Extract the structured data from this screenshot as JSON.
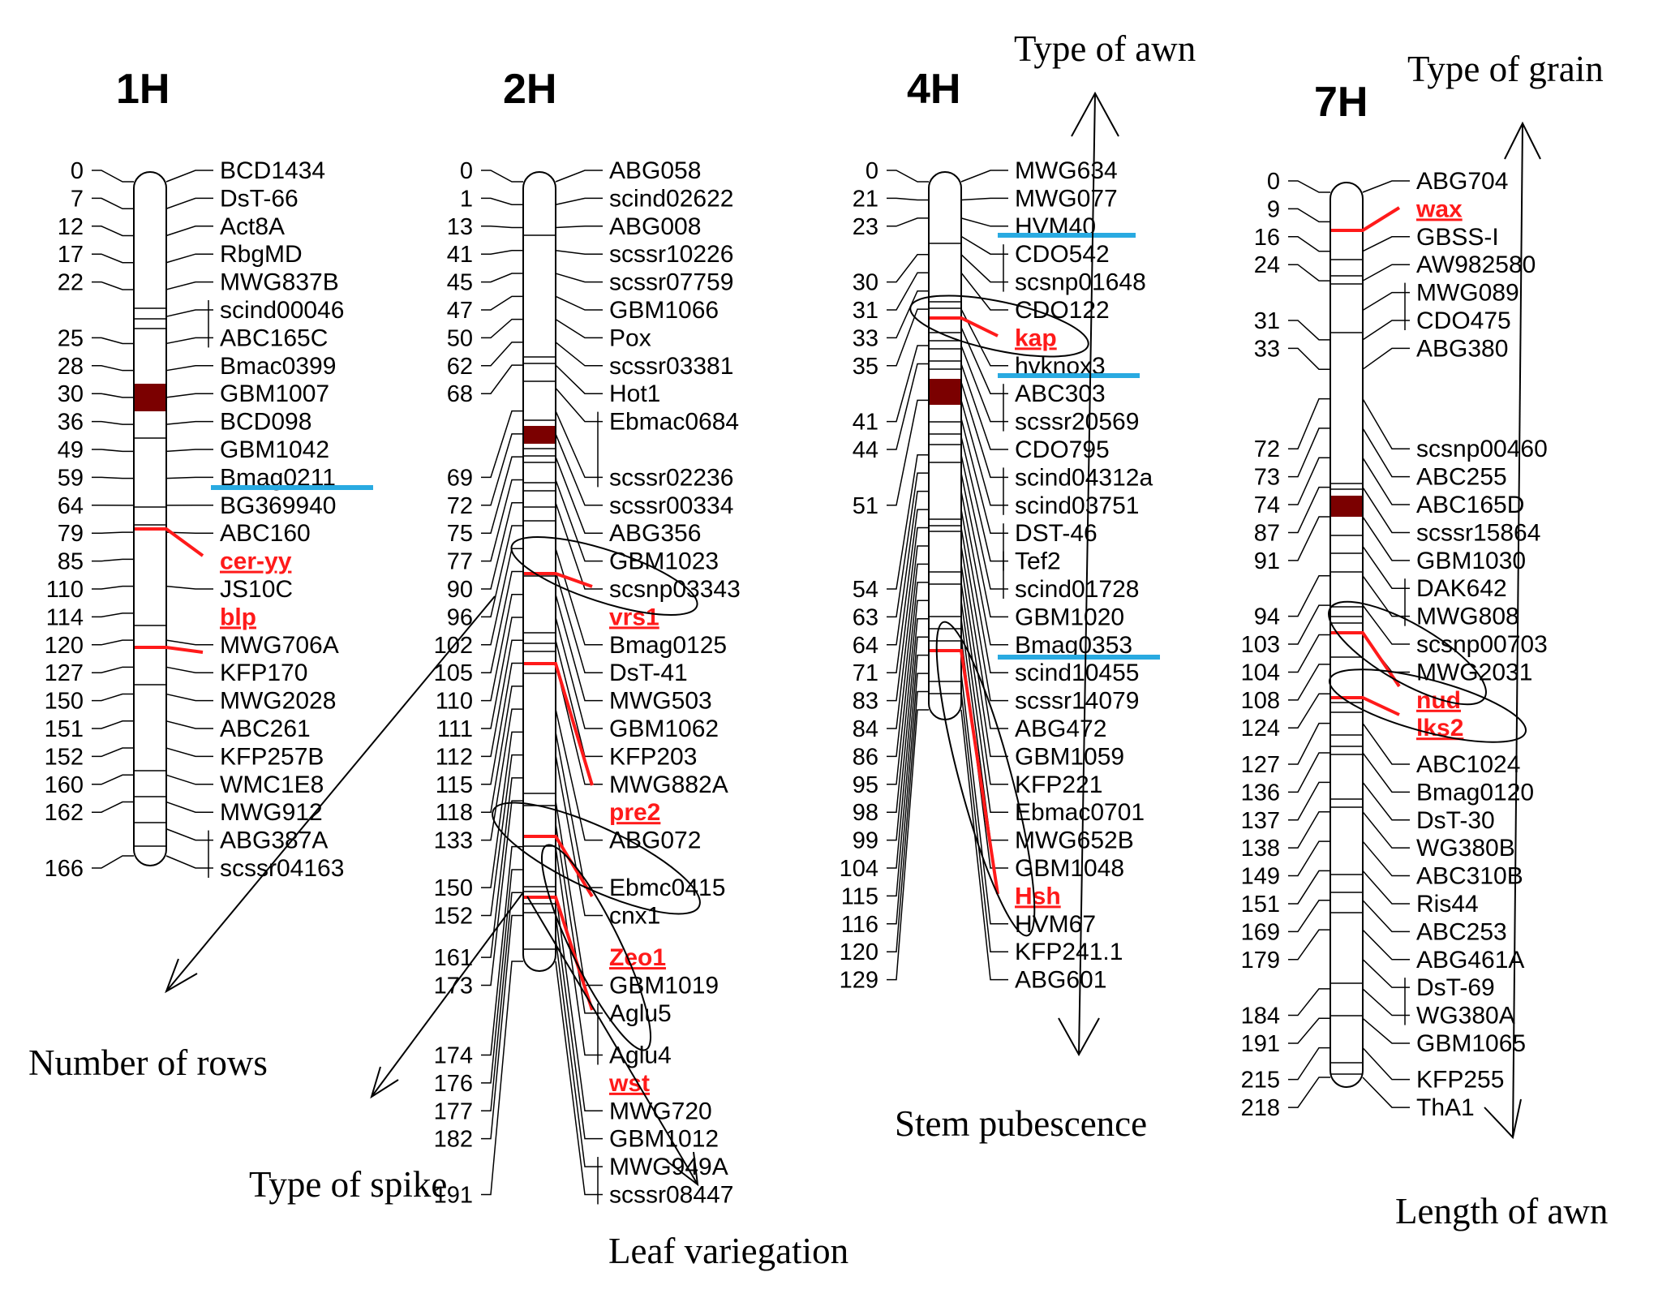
{
  "colors": {
    "ink": "#000000",
    "gene": "#ff1a1a",
    "highlight": "#29aae1",
    "centromere": "#7b0000"
  },
  "chromosomes": [
    {
      "name": "1H",
      "rows": [
        {
          "pos": "0",
          "marker": "BCD1434"
        },
        {
          "pos": "7",
          "marker": "DsT-66"
        },
        {
          "pos": "12",
          "marker": "Act8A"
        },
        {
          "pos": "17",
          "marker": "RbgMD"
        },
        {
          "pos": "22",
          "marker": "MWG837B"
        },
        {
          "pos": "",
          "marker": "scind00046"
        },
        {
          "pos": "25",
          "marker": "ABC165C"
        },
        {
          "pos": "28",
          "marker": "Bmac0399"
        },
        {
          "pos": "30",
          "marker": "GBM1007"
        },
        {
          "pos": "36",
          "marker": "BCD098"
        },
        {
          "pos": "49",
          "marker": "GBM1042"
        },
        {
          "pos": "59",
          "marker": "Bmag0211"
        },
        {
          "pos": "64",
          "marker": "BG369940"
        },
        {
          "pos": "79",
          "marker": "ABC160"
        },
        {
          "pos": "85",
          "marker": "cer-yy",
          "gene": true
        },
        {
          "pos": "110",
          "marker": "JS10C"
        },
        {
          "pos": "114",
          "marker": "blp",
          "gene": true
        },
        {
          "pos": "120",
          "marker": "MWG706A"
        },
        {
          "pos": "127",
          "marker": "KFP170"
        },
        {
          "pos": "150",
          "marker": "MWG2028"
        },
        {
          "pos": "151",
          "marker": "ABC261"
        },
        {
          "pos": "152",
          "marker": "KFP257B"
        },
        {
          "pos": "160",
          "marker": "WMC1E8"
        },
        {
          "pos": "162",
          "marker": "MWG912"
        },
        {
          "pos": "",
          "marker": "ABG387A"
        },
        {
          "pos": "166",
          "marker": "scssr04163"
        }
      ]
    },
    {
      "name": "2H",
      "rows": [
        {
          "pos": "0",
          "marker": "ABG058"
        },
        {
          "pos": "1",
          "marker": "scind02622"
        },
        {
          "pos": "13",
          "marker": "ABG008"
        },
        {
          "pos": "41",
          "marker": "scssr10226"
        },
        {
          "pos": "45",
          "marker": "scssr07759"
        },
        {
          "pos": "47",
          "marker": "GBM1066"
        },
        {
          "pos": "50",
          "marker": "Pox"
        },
        {
          "pos": "62",
          "marker": "scssr03381"
        },
        {
          "pos": "68",
          "marker": "Hot1"
        },
        {
          "pos": "",
          "marker": "Ebmac0684"
        },
        {
          "pos": "69",
          "marker": "scssr02236"
        },
        {
          "pos": "72",
          "marker": "scssr00334"
        },
        {
          "pos": "75",
          "marker": "ABG356"
        },
        {
          "pos": "77",
          "marker": "GBM1023"
        },
        {
          "pos": "90",
          "marker": "scsnp03343"
        },
        {
          "pos": "96",
          "marker": "vrs1",
          "gene": true
        },
        {
          "pos": "102",
          "marker": "Bmag0125"
        },
        {
          "pos": "105",
          "marker": "DsT-41"
        },
        {
          "pos": "110",
          "marker": "MWG503"
        },
        {
          "pos": "111",
          "marker": "GBM1062"
        },
        {
          "pos": "112",
          "marker": "KFP203"
        },
        {
          "pos": "115",
          "marker": "MWG882A"
        },
        {
          "pos": "118",
          "marker": "pre2",
          "gene": true
        },
        {
          "pos": "133",
          "marker": "ABG072"
        },
        {
          "pos": "150",
          "marker": "Ebmc0415"
        },
        {
          "pos": "152",
          "marker": "cnx1"
        },
        {
          "pos": "161",
          "marker": "Zeo1",
          "gene": true
        },
        {
          "pos": "173",
          "marker": "GBM1019"
        },
        {
          "pos": "",
          "marker": "Aglu5"
        },
        {
          "pos": "174",
          "marker": "Aglu4"
        },
        {
          "pos": "176",
          "marker": "wst",
          "gene": true
        },
        {
          "pos": "177",
          "marker": "MWG720"
        },
        {
          "pos": "182",
          "marker": "GBM1012"
        },
        {
          "pos": "",
          "marker": "MWG949A"
        },
        {
          "pos": "191",
          "marker": "scssr08447"
        }
      ]
    },
    {
      "name": "4H",
      "rows": [
        {
          "pos": "0",
          "marker": "MWG634"
        },
        {
          "pos": "21",
          "marker": "MWG077"
        },
        {
          "pos": "23",
          "marker": "HVM40"
        },
        {
          "pos": "",
          "marker": "CDO542"
        },
        {
          "pos": "30",
          "marker": "scsnp01648"
        },
        {
          "pos": "31",
          "marker": "CDO122"
        },
        {
          "pos": "33",
          "marker": "kap",
          "gene": true
        },
        {
          "pos": "35",
          "marker": "hvknox3"
        },
        {
          "pos": "",
          "marker": "ABC303"
        },
        {
          "pos": "41",
          "marker": "scssr20569"
        },
        {
          "pos": "44",
          "marker": "CDO795"
        },
        {
          "pos": "",
          "marker": "scind04312a"
        },
        {
          "pos": "51",
          "marker": "scind03751"
        },
        {
          "pos": "",
          "marker": "DST-46"
        },
        {
          "pos": "",
          "marker": "Tef2"
        },
        {
          "pos": "54",
          "marker": "scind01728"
        },
        {
          "pos": "63",
          "marker": "GBM1020"
        },
        {
          "pos": "64",
          "marker": "Bmag0353"
        },
        {
          "pos": "71",
          "marker": "scind10455"
        },
        {
          "pos": "83",
          "marker": "scssr14079"
        },
        {
          "pos": "84",
          "marker": "ABG472"
        },
        {
          "pos": "86",
          "marker": "GBM1059"
        },
        {
          "pos": "95",
          "marker": "KFP221"
        },
        {
          "pos": "98",
          "marker": "Ebmac0701"
        },
        {
          "pos": "99",
          "marker": "MWG652B"
        },
        {
          "pos": "104",
          "marker": "GBM1048"
        },
        {
          "pos": "115",
          "marker": "Hsh",
          "gene": true
        },
        {
          "pos": "116",
          "marker": "HVM67"
        },
        {
          "pos": "120",
          "marker": "KFP241.1"
        },
        {
          "pos": "129",
          "marker": "ABG601"
        }
      ]
    },
    {
      "name": "7H",
      "rows": [
        {
          "pos": "0",
          "marker": "ABG704"
        },
        {
          "pos": "9",
          "marker": "wax",
          "gene": true
        },
        {
          "pos": "16",
          "marker": "GBSS-I"
        },
        {
          "pos": "24",
          "marker": "AW982580"
        },
        {
          "pos": "",
          "marker": "MWG089"
        },
        {
          "pos": "31",
          "marker": "CDO475"
        },
        {
          "pos": "33",
          "marker": "ABG380"
        },
        {
          "pos": "72",
          "marker": "scsnp00460"
        },
        {
          "pos": "73",
          "marker": "ABC255"
        },
        {
          "pos": "74",
          "marker": "ABC165D"
        },
        {
          "pos": "87",
          "marker": "scssr15864"
        },
        {
          "pos": "91",
          "marker": "GBM1030"
        },
        {
          "pos": "",
          "marker": "DAK642"
        },
        {
          "pos": "94",
          "marker": "MWG808"
        },
        {
          "pos": "103",
          "marker": "scsnp00703"
        },
        {
          "pos": "104",
          "marker": "MWG2031"
        },
        {
          "pos": "108",
          "marker": "nud",
          "gene": true
        },
        {
          "pos": "124",
          "marker": "lks2",
          "gene": true
        },
        {
          "pos": "127",
          "marker": "ABC1024"
        },
        {
          "pos": "136",
          "marker": "Bmag0120"
        },
        {
          "pos": "137",
          "marker": "DsT-30"
        },
        {
          "pos": "138",
          "marker": "WG380B"
        },
        {
          "pos": "149",
          "marker": "ABC310B"
        },
        {
          "pos": "151",
          "marker": "Ris44"
        },
        {
          "pos": "169",
          "marker": "ABC253"
        },
        {
          "pos": "179",
          "marker": "ABG461A"
        },
        {
          "pos": "",
          "marker": "DsT-69"
        },
        {
          "pos": "184",
          "marker": "WG380A"
        },
        {
          "pos": "191",
          "marker": "GBM1065"
        },
        {
          "pos": "215",
          "marker": "KFP255"
        },
        {
          "pos": "218",
          "marker": "ThA1"
        }
      ]
    }
  ],
  "traits": {
    "number_of_rows": "Number of rows",
    "type_of_spike": "Type of spike",
    "leaf_variegation": "Leaf variegation",
    "type_of_awn": "Type of awn",
    "stem_pubescence": "Stem pubescence",
    "type_of_grain": "Type of grain",
    "length_of_awn": "Length of awn"
  }
}
